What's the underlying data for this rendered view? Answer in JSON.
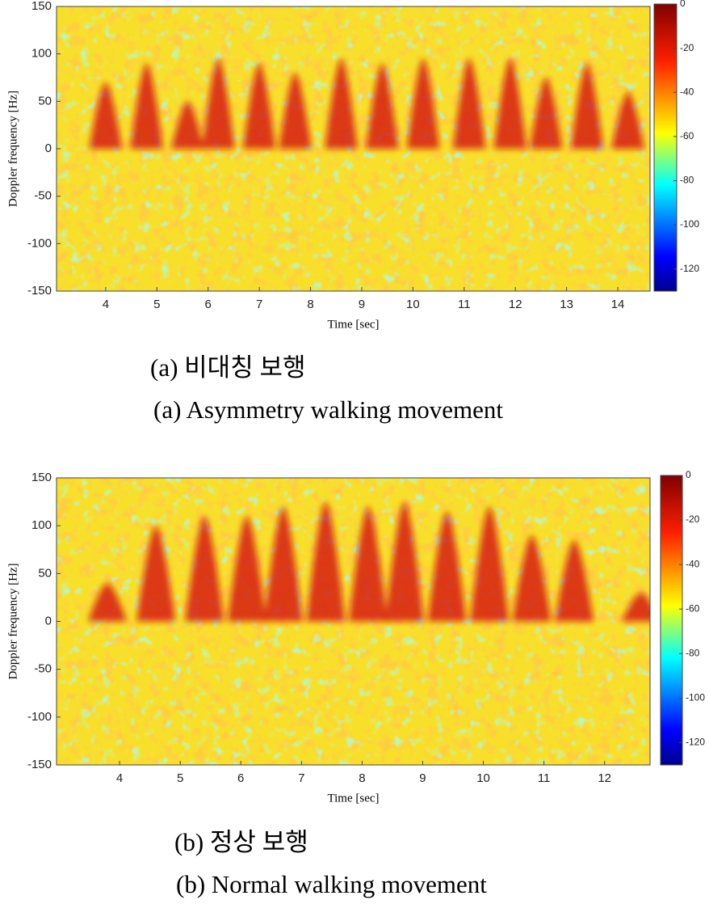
{
  "chart_data": [
    {
      "type": "spectrogram",
      "xlabel": "Time [sec]",
      "ylabel": "Doppler frequency [Hz]",
      "caption": "(a) 비대칭 보행",
      "subcaption": "(a) Asymmetry walking movement",
      "xlim": [
        3.04,
        14.63
      ],
      "xticks": [
        4,
        5,
        6,
        7,
        8,
        9,
        10,
        11,
        12,
        13,
        14
      ],
      "ylim": [
        -150,
        150
      ],
      "yticks": [
        -150,
        -100,
        -50,
        0,
        50,
        100,
        150
      ],
      "x": [
        4.0,
        4.8,
        5.6,
        6.2,
        7.0,
        7.7,
        8.6,
        9.4,
        10.2,
        11.1,
        11.9,
        12.6,
        13.4,
        14.2
      ],
      "values": [
        70,
        90,
        50,
        95,
        90,
        80,
        95,
        90,
        95,
        95,
        95,
        75,
        90,
        60
      ],
      "color": "#d41010",
      "colormap": "jet",
      "colorbar": {
        "lim": [
          -130,
          0
        ],
        "ticks": [
          0,
          -20,
          -40,
          -60,
          -80,
          -100,
          -120
        ]
      }
    },
    {
      "type": "spectrogram",
      "xlabel": "Time [sec]",
      "ylabel": "Doppler frequency [Hz]",
      "caption": "(b) 정상 보행",
      "subcaption": "(b) Normal walking movement",
      "xlim": [
        2.96,
        12.75
      ],
      "xticks": [
        4,
        5,
        6,
        7,
        8,
        9,
        10,
        11,
        12
      ],
      "ylim": [
        -150,
        150
      ],
      "yticks": [
        -150,
        -100,
        -50,
        0,
        50,
        100,
        150
      ],
      "x": [
        3.8,
        4.6,
        5.4,
        6.1,
        6.7,
        7.4,
        8.1,
        8.7,
        9.4,
        10.1,
        10.8,
        11.5,
        12.6
      ],
      "values": [
        40,
        100,
        110,
        110,
        120,
        125,
        120,
        125,
        115,
        120,
        90,
        85,
        30
      ],
      "color": "#d41010",
      "colormap": "jet",
      "colorbar": {
        "lim": [
          -130,
          0
        ],
        "ticks": [
          0,
          -20,
          -40,
          -60,
          -80,
          -100,
          -120
        ]
      }
    }
  ]
}
